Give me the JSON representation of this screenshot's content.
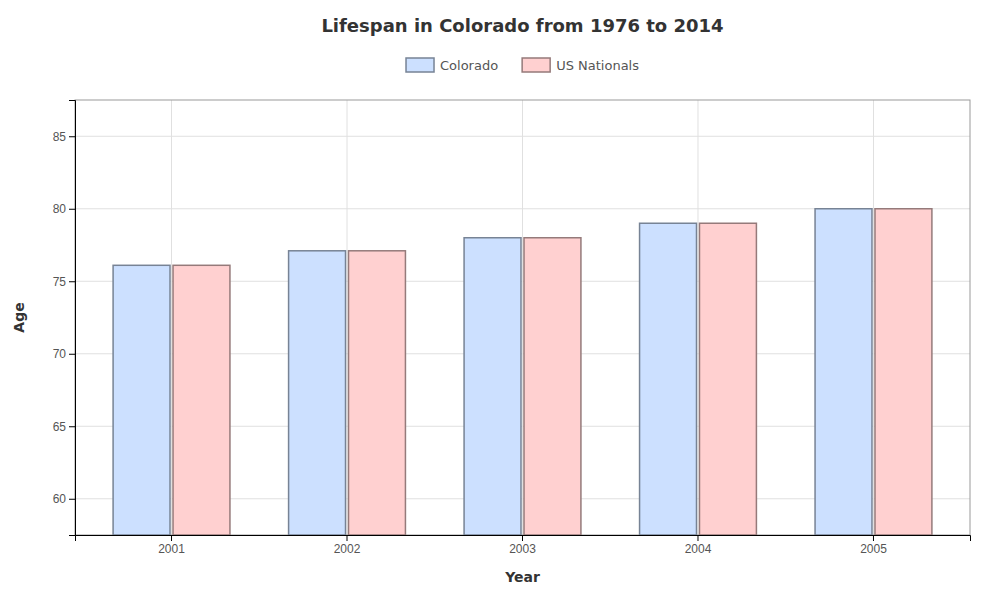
{
  "chart_data": {
    "type": "bar",
    "title": "Lifespan in Colorado from 1976 to 2014",
    "xlabel": "Year",
    "ylabel": "Age",
    "categories": [
      "2001",
      "2002",
      "2003",
      "2004",
      "2005"
    ],
    "series": [
      {
        "name": "Colorado",
        "color": "#cce0ff",
        "values": [
          76.1,
          77.1,
          78.0,
          79.0,
          80.0
        ]
      },
      {
        "name": "US Nationals",
        "color": "#ffd0d0",
        "values": [
          76.1,
          77.1,
          78.0,
          79.0,
          80.0
        ]
      }
    ],
    "ylim": [
      57.5,
      87.5
    ],
    "yticks": [
      60,
      65,
      70,
      75,
      80,
      85
    ],
    "grid": true,
    "legend": "top"
  }
}
